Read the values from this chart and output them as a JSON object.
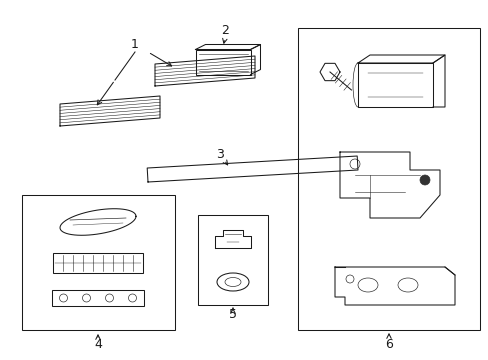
{
  "bg_color": "#ffffff",
  "line_color": "#1a1a1a",
  "fig_width": 4.89,
  "fig_height": 3.6,
  "dpi": 100,
  "label_fontsize": 9,
  "lw": 0.75
}
